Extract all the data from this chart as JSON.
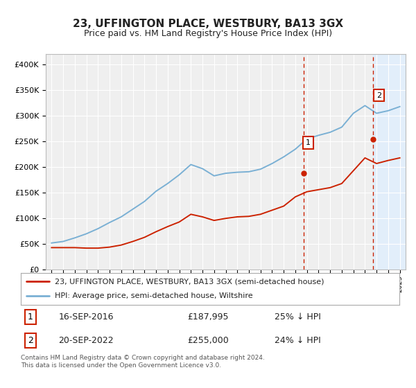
{
  "title": "23, UFFINGTON PLACE, WESTBURY, BA13 3GX",
  "subtitle": "Price paid vs. HM Land Registry's House Price Index (HPI)",
  "ylim": [
    0,
    420000
  ],
  "yticks": [
    0,
    50000,
    100000,
    150000,
    200000,
    250000,
    300000,
    350000,
    400000
  ],
  "xlim_left": 1994.5,
  "xlim_right": 2025.5,
  "hpi_years": [
    1995,
    1996,
    1997,
    1998,
    1999,
    2000,
    2001,
    2002,
    2003,
    2004,
    2005,
    2006,
    2007,
    2008,
    2009,
    2010,
    2011,
    2012,
    2013,
    2014,
    2015,
    2016,
    2017,
    2018,
    2019,
    2020,
    2021,
    2022,
    2023,
    2024,
    2025
  ],
  "hpi_values": [
    52000,
    55000,
    62000,
    70000,
    80000,
    92000,
    103000,
    118000,
    133000,
    153000,
    168000,
    185000,
    205000,
    197000,
    183000,
    188000,
    190000,
    191000,
    196000,
    207000,
    220000,
    235000,
    255000,
    262000,
    268000,
    278000,
    305000,
    320000,
    305000,
    310000,
    318000
  ],
  "prop_years": [
    1995,
    1996,
    1997,
    1998,
    1999,
    2000,
    2001,
    2002,
    2003,
    2004,
    2005,
    2006,
    2007,
    2008,
    2009,
    2010,
    2011,
    2012,
    2013,
    2014,
    2015,
    2016,
    2017,
    2018,
    2019,
    2020,
    2021,
    2022,
    2023,
    2024,
    2025
  ],
  "prop_values": [
    43000,
    43000,
    43000,
    42000,
    42000,
    44000,
    48000,
    55000,
    63000,
    74000,
    84000,
    93000,
    108000,
    103000,
    96000,
    100000,
    103000,
    104000,
    108000,
    116000,
    124000,
    142000,
    152000,
    156000,
    160000,
    168000,
    193000,
    218000,
    207000,
    213000,
    218000
  ],
  "sale1_year": 2016.72,
  "sale1_value": 187995,
  "sale2_year": 2022.72,
  "sale2_value": 255000,
  "hpi_color": "#7ab0d4",
  "prop_color": "#cc2200",
  "vline_color": "#cc2200",
  "shade_color": "#ddeeff",
  "plot_bg": "#efefef",
  "bg_color": "#ffffff",
  "grid_color": "#ffffff",
  "legend_label_prop": "23, UFFINGTON PLACE, WESTBURY, BA13 3GX (semi-detached house)",
  "legend_label_hpi": "HPI: Average price, semi-detached house, Wiltshire",
  "ann1_date": "16-SEP-2016",
  "ann1_price": "£187,995",
  "ann1_hpi": "25% ↓ HPI",
  "ann2_date": "20-SEP-2022",
  "ann2_price": "£255,000",
  "ann2_hpi": "24% ↓ HPI",
  "footer": "Contains HM Land Registry data © Crown copyright and database right 2024.\nThis data is licensed under the Open Government Licence v3.0."
}
